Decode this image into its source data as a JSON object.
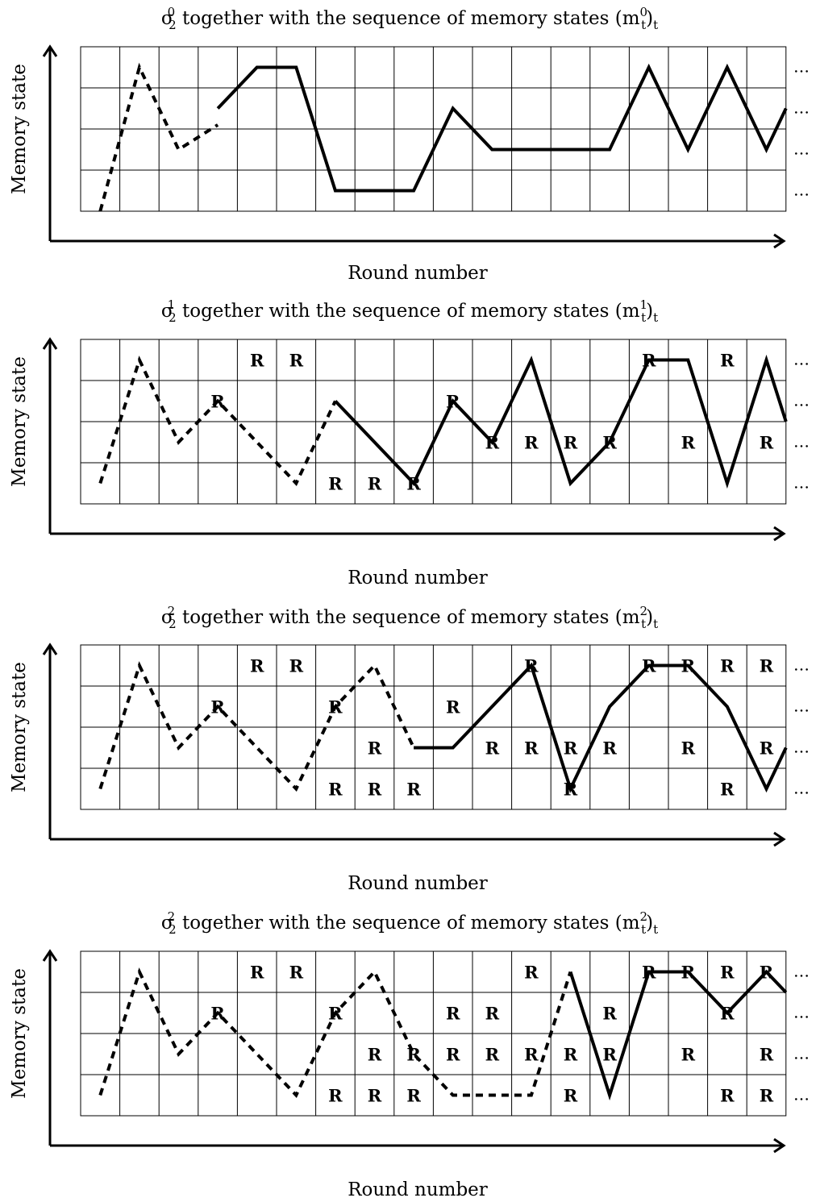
{
  "panels": [
    {
      "title": {
        "main": "σ",
        "sub": "2",
        "sup": "0",
        "rest": " together with the sequence of memory states (m",
        "rest_sup": "0",
        "rest_sub": "t",
        "close": ")",
        "close_sub": "t"
      },
      "ylabel": "Memory state",
      "xlabel": "Round number",
      "dashed": [
        [
          0.5,
          0
        ],
        [
          1.5,
          3.5
        ],
        [
          2.5,
          1.5
        ],
        [
          3.5,
          2.1
        ]
      ],
      "solid": [
        [
          3.5,
          2.5
        ],
        [
          4.5,
          3.5
        ],
        [
          5.5,
          3.5
        ],
        [
          6.5,
          0.5
        ],
        [
          8.5,
          0.5
        ],
        [
          9.5,
          2.5
        ],
        [
          10.5,
          1.5
        ],
        [
          13.5,
          1.5
        ],
        [
          14.5,
          3.5
        ],
        [
          15.5,
          1.5
        ],
        [
          16.5,
          3.5
        ],
        [
          17.5,
          1.5
        ],
        [
          18,
          2.5
        ]
      ],
      "r_cells": [],
      "continuation": [
        "…",
        "…",
        "…",
        "…"
      ]
    },
    {
      "title": {
        "main": "σ",
        "sub": "2",
        "sup": "1",
        "rest": " together with the sequence of memory states (m",
        "rest_sup": "1",
        "rest_sub": "t",
        "close": ")",
        "close_sub": "t"
      },
      "ylabel": "Memory state",
      "xlabel": "Round number",
      "dashed": [
        [
          0.5,
          0.5
        ],
        [
          1.5,
          3.5
        ],
        [
          2.5,
          1.5
        ],
        [
          3.5,
          2.5
        ],
        [
          5.5,
          0.5
        ],
        [
          6.5,
          2.5
        ]
      ],
      "solid": [
        [
          6.5,
          2.5
        ],
        [
          8.5,
          0.5
        ],
        [
          9.5,
          2.5
        ],
        [
          10.5,
          1.5
        ],
        [
          11.5,
          3.5
        ],
        [
          12.5,
          0.5
        ],
        [
          13.5,
          1.5
        ],
        [
          14.5,
          3.5
        ],
        [
          15.5,
          3.5
        ],
        [
          16.5,
          0.5
        ],
        [
          17.5,
          3.5
        ],
        [
          18,
          2
        ]
      ],
      "r_cells": [
        [
          4,
          3
        ],
        [
          5,
          3
        ],
        [
          3,
          2
        ],
        [
          9,
          2
        ],
        [
          10,
          1
        ],
        [
          11,
          1
        ],
        [
          12,
          1
        ],
        [
          13,
          1
        ],
        [
          15,
          1
        ],
        [
          17,
          1
        ],
        [
          6,
          0
        ],
        [
          7,
          0
        ],
        [
          8,
          0
        ],
        [
          14,
          3
        ],
        [
          16,
          3
        ]
      ],
      "continuation": [
        "…",
        "…",
        "…",
        "…"
      ]
    },
    {
      "title": {
        "main": "σ",
        "sub": "2",
        "sup": "2",
        "rest": " together with the sequence of memory states (m",
        "rest_sup": "2",
        "rest_sub": "t",
        "close": ")",
        "close_sub": "t"
      },
      "ylabel": "Memory state",
      "xlabel": "Round number",
      "dashed": [
        [
          0.5,
          0.5
        ],
        [
          1.5,
          3.5
        ],
        [
          2.5,
          1.5
        ],
        [
          3.5,
          2.5
        ],
        [
          5.5,
          0.5
        ],
        [
          6.5,
          2.5
        ],
        [
          7.5,
          3.5
        ],
        [
          8.5,
          1.5
        ]
      ],
      "solid": [
        [
          8.5,
          1.5
        ],
        [
          9.5,
          1.5
        ],
        [
          11.5,
          3.5
        ],
        [
          12.5,
          0.5
        ],
        [
          13.5,
          2.5
        ],
        [
          14.5,
          3.5
        ],
        [
          15.5,
          3.5
        ],
        [
          16.5,
          2.5
        ],
        [
          17.5,
          0.5
        ],
        [
          18,
          1.5
        ]
      ],
      "r_cells": [
        [
          4,
          3
        ],
        [
          5,
          3
        ],
        [
          11,
          3
        ],
        [
          14,
          3
        ],
        [
          15,
          3
        ],
        [
          16,
          3
        ],
        [
          17,
          3
        ],
        [
          3,
          2
        ],
        [
          6,
          2
        ],
        [
          9,
          2
        ],
        [
          7,
          1
        ],
        [
          10,
          1
        ],
        [
          11,
          1
        ],
        [
          12,
          1
        ],
        [
          13,
          1
        ],
        [
          15,
          1
        ],
        [
          17,
          1
        ],
        [
          6,
          0
        ],
        [
          7,
          0
        ],
        [
          8,
          0
        ],
        [
          12,
          0
        ],
        [
          16,
          0
        ]
      ],
      "continuation": [
        "…",
        "…",
        "…",
        "…"
      ]
    },
    {
      "title": {
        "main": "σ",
        "sub": "2",
        "sup": "2",
        "rest": " together with the sequence of memory states (m",
        "rest_sup": "2",
        "rest_sub": "t",
        "close": ")",
        "close_sub": "t"
      },
      "ylabel": "Memory state",
      "xlabel": "Round number",
      "dashed": [
        [
          0.5,
          0.5
        ],
        [
          1.5,
          3.5
        ],
        [
          2.5,
          1.5
        ],
        [
          3.5,
          2.5
        ],
        [
          5.5,
          0.5
        ],
        [
          6.5,
          2.5
        ],
        [
          7.5,
          3.5
        ],
        [
          8.5,
          1.5
        ],
        [
          9.5,
          0.5
        ],
        [
          11.5,
          0.5
        ],
        [
          12.5,
          3.5
        ]
      ],
      "solid": [
        [
          12.5,
          3.5
        ],
        [
          13.5,
          0.5
        ],
        [
          14.5,
          3.5
        ],
        [
          15.5,
          3.5
        ],
        [
          16.5,
          2.5
        ],
        [
          17.5,
          3.5
        ],
        [
          18,
          3
        ]
      ],
      "r_cells": [
        [
          4,
          3
        ],
        [
          5,
          3
        ],
        [
          11,
          3
        ],
        [
          14,
          3
        ],
        [
          15,
          3
        ],
        [
          16,
          3
        ],
        [
          17,
          3
        ],
        [
          3,
          2
        ],
        [
          6,
          2
        ],
        [
          9,
          2
        ],
        [
          10,
          2
        ],
        [
          13,
          2
        ],
        [
          16,
          2
        ],
        [
          7,
          1
        ],
        [
          8,
          1
        ],
        [
          9,
          1
        ],
        [
          10,
          1
        ],
        [
          11,
          1
        ],
        [
          12,
          1
        ],
        [
          13,
          1
        ],
        [
          15,
          1
        ],
        [
          17,
          1
        ],
        [
          6,
          0
        ],
        [
          7,
          0
        ],
        [
          8,
          0
        ],
        [
          12,
          0
        ],
        [
          16,
          0
        ],
        [
          17,
          0
        ]
      ],
      "continuation": [
        "…",
        "…",
        "…",
        "…"
      ]
    }
  ],
  "cell_mark": "R"
}
